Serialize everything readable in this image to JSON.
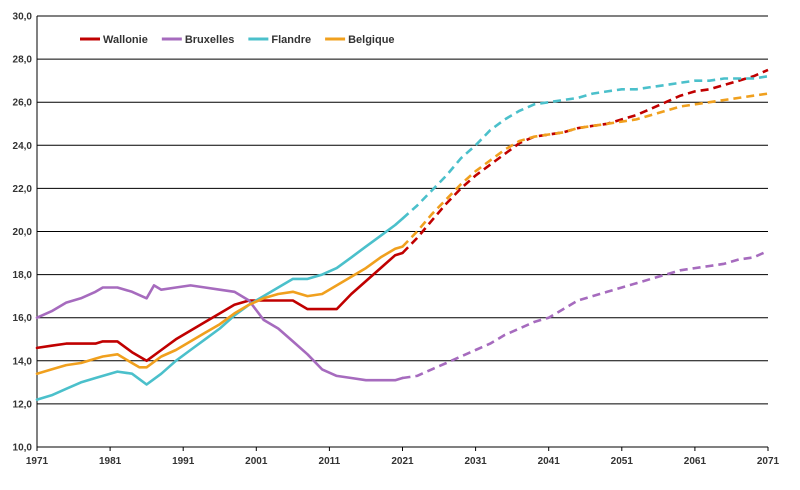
{
  "chart_data": {
    "type": "line",
    "title": "",
    "xlabel": "",
    "ylabel": "",
    "xlim": [
      1971,
      2071
    ],
    "ylim": [
      10,
      30
    ],
    "y_ticks": [
      "10,0",
      "12,0",
      "14,0",
      "16,0",
      "18,0",
      "20,0",
      "22,0",
      "24,0",
      "26,0",
      "28,0",
      "30,0"
    ],
    "x_ticks": [
      "1971",
      "1981",
      "1991",
      "2001",
      "2011",
      "2021",
      "2031",
      "2041",
      "2051",
      "2061",
      "2071"
    ],
    "grid": "horizontal",
    "legend": "top-left",
    "observed_until": 2021,
    "observed_style": "solid",
    "projected_style": "dashed",
    "series": [
      {
        "name": "Wallonie",
        "color": "#c00000",
        "x": [
          1971,
          1973,
          1975,
          1977,
          1979,
          1980,
          1982,
          1984,
          1986,
          1988,
          1990,
          1992,
          1994,
          1996,
          1998,
          2000,
          2002,
          2004,
          2006,
          2008,
          2010,
          2012,
          2014,
          2016,
          2018,
          2020,
          2021,
          2023,
          2025,
          2027,
          2029,
          2031,
          2033,
          2035,
          2037,
          2039,
          2041,
          2043,
          2045,
          2047,
          2049,
          2051,
          2053,
          2055,
          2057,
          2059,
          2061,
          2063,
          2065,
          2067,
          2069,
          2071
        ],
        "y": [
          14.6,
          14.7,
          14.8,
          14.8,
          14.8,
          14.9,
          14.9,
          14.4,
          14.0,
          14.5,
          15.0,
          15.4,
          15.8,
          16.2,
          16.6,
          16.8,
          16.8,
          16.8,
          16.8,
          16.4,
          16.4,
          16.4,
          17.1,
          17.7,
          18.3,
          18.9,
          19.0,
          19.7,
          20.5,
          21.3,
          22.0,
          22.6,
          23.1,
          23.6,
          24.1,
          24.4,
          24.5,
          24.6,
          24.8,
          24.9,
          25.0,
          25.2,
          25.4,
          25.7,
          26.0,
          26.3,
          26.5,
          26.6,
          26.8,
          27.0,
          27.2,
          27.5
        ]
      },
      {
        "name": "Bruxelles",
        "color": "#a66bbe",
        "x": [
          1971,
          1973,
          1975,
          1977,
          1979,
          1980,
          1982,
          1984,
          1986,
          1987,
          1988,
          1990,
          1992,
          1994,
          1996,
          1998,
          2000,
          2002,
          2004,
          2006,
          2008,
          2010,
          2012,
          2014,
          2016,
          2018,
          2020,
          2021,
          2023,
          2025,
          2027,
          2029,
          2031,
          2033,
          2035,
          2037,
          2039,
          2041,
          2043,
          2045,
          2047,
          2049,
          2051,
          2053,
          2055,
          2057,
          2059,
          2061,
          2063,
          2065,
          2067,
          2069,
          2071
        ],
        "y": [
          16.0,
          16.3,
          16.7,
          16.9,
          17.2,
          17.4,
          17.4,
          17.2,
          16.9,
          17.5,
          17.3,
          17.4,
          17.5,
          17.4,
          17.3,
          17.2,
          16.8,
          15.9,
          15.5,
          14.9,
          14.3,
          13.6,
          13.3,
          13.2,
          13.1,
          13.1,
          13.1,
          13.2,
          13.3,
          13.6,
          13.9,
          14.2,
          14.5,
          14.8,
          15.2,
          15.5,
          15.8,
          16.0,
          16.4,
          16.8,
          17.0,
          17.2,
          17.4,
          17.6,
          17.8,
          18.0,
          18.2,
          18.3,
          18.4,
          18.5,
          18.7,
          18.8,
          19.1
        ]
      },
      {
        "name": "Flandre",
        "color": "#4bc0cb",
        "x": [
          1971,
          1973,
          1975,
          1977,
          1979,
          1980,
          1982,
          1984,
          1986,
          1988,
          1990,
          1992,
          1994,
          1996,
          1998,
          2000,
          2002,
          2004,
          2006,
          2008,
          2010,
          2012,
          2014,
          2016,
          2018,
          2020,
          2021,
          2023,
          2025,
          2027,
          2029,
          2031,
          2033,
          2035,
          2037,
          2039,
          2041,
          2043,
          2045,
          2047,
          2049,
          2051,
          2053,
          2055,
          2057,
          2059,
          2061,
          2063,
          2065,
          2067,
          2069,
          2071
        ],
        "y": [
          12.2,
          12.4,
          12.7,
          13.0,
          13.2,
          13.3,
          13.5,
          13.4,
          12.9,
          13.4,
          14.0,
          14.5,
          15.0,
          15.5,
          16.1,
          16.6,
          17.0,
          17.4,
          17.8,
          17.8,
          18.0,
          18.3,
          18.8,
          19.3,
          19.8,
          20.3,
          20.6,
          21.2,
          21.9,
          22.6,
          23.4,
          24.0,
          24.7,
          25.2,
          25.6,
          25.9,
          26.0,
          26.1,
          26.2,
          26.4,
          26.5,
          26.6,
          26.6,
          26.7,
          26.8,
          26.9,
          27.0,
          27.0,
          27.1,
          27.1,
          27.1,
          27.2
        ]
      },
      {
        "name": "Belgique",
        "color": "#f0a01e",
        "x": [
          1971,
          1973,
          1975,
          1977,
          1979,
          1980,
          1982,
          1984,
          1985,
          1986,
          1988,
          1990,
          1992,
          1994,
          1996,
          1998,
          2000,
          2002,
          2004,
          2006,
          2008,
          2010,
          2012,
          2014,
          2016,
          2018,
          2020,
          2021,
          2023,
          2025,
          2027,
          2029,
          2031,
          2033,
          2035,
          2037,
          2039,
          2041,
          2043,
          2045,
          2047,
          2049,
          2051,
          2053,
          2055,
          2057,
          2059,
          2061,
          2063,
          2065,
          2067,
          2069,
          2071
        ],
        "y": [
          13.4,
          13.6,
          13.8,
          13.9,
          14.1,
          14.2,
          14.3,
          13.9,
          13.7,
          13.7,
          14.2,
          14.5,
          14.9,
          15.3,
          15.7,
          16.2,
          16.6,
          16.9,
          17.1,
          17.2,
          17.0,
          17.1,
          17.5,
          17.9,
          18.3,
          18.8,
          19.2,
          19.3,
          20.0,
          20.8,
          21.5,
          22.2,
          22.8,
          23.3,
          23.8,
          24.2,
          24.4,
          24.5,
          24.6,
          24.8,
          24.9,
          25.0,
          25.1,
          25.2,
          25.4,
          25.6,
          25.8,
          25.9,
          26.0,
          26.1,
          26.2,
          26.3,
          26.4
        ]
      }
    ]
  }
}
